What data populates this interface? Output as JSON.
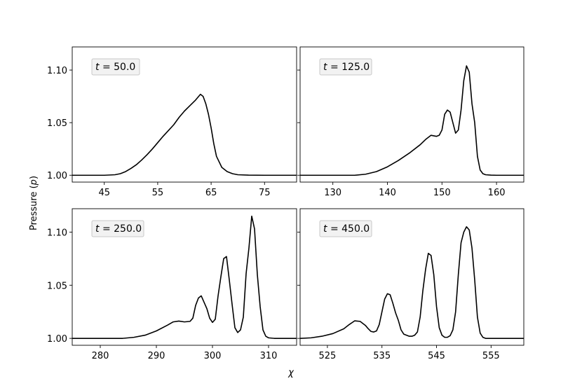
{
  "figure": {
    "ylabel": "Pressure (p)",
    "xlabel": "χ"
  },
  "chart_data": [
    {
      "type": "line",
      "annotation": "t = 50.0",
      "xlim": [
        39,
        81
      ],
      "ylim": [
        0.9935,
        1.122
      ],
      "xticks": [
        45,
        55,
        65,
        75
      ],
      "yticks": [
        1.0,
        1.05,
        1.1
      ],
      "x": [
        39,
        45,
        47,
        48,
        49,
        50,
        51,
        52,
        53,
        54,
        55,
        56,
        57,
        58,
        59,
        60,
        61,
        62,
        62.5,
        63,
        63.5,
        64,
        64.5,
        65,
        65.5,
        66,
        67,
        68,
        69,
        70,
        72,
        75,
        81
      ],
      "values": [
        1.0,
        1.0,
        1.0005,
        1.0015,
        1.0035,
        1.0065,
        1.01,
        1.0145,
        1.0195,
        1.025,
        1.031,
        1.037,
        1.0425,
        1.048,
        1.055,
        1.061,
        1.066,
        1.071,
        1.074,
        1.077,
        1.075,
        1.068,
        1.058,
        1.045,
        1.03,
        1.018,
        1.0075,
        1.0035,
        1.0015,
        1.0005,
        1.0001,
        1.0,
        1.0
      ]
    },
    {
      "type": "line",
      "annotation": "t = 125.0",
      "xlim": [
        124,
        165
      ],
      "ylim": [
        0.9935,
        1.122
      ],
      "xticks": [
        130,
        140,
        150,
        160
      ],
      "yticks": [
        1.0,
        1.05,
        1.1
      ],
      "x": [
        124,
        134,
        136,
        138,
        140,
        142,
        144,
        146,
        147,
        148,
        149,
        149.5,
        150,
        150.5,
        151,
        151.5,
        152,
        152.5,
        153,
        153.5,
        154,
        154.5,
        155,
        155.5,
        156,
        156.5,
        157,
        157.5,
        158,
        159,
        160,
        165
      ],
      "values": [
        1.0,
        1.0,
        1.001,
        1.0035,
        1.008,
        1.014,
        1.021,
        1.029,
        1.034,
        1.038,
        1.037,
        1.038,
        1.043,
        1.058,
        1.062,
        1.06,
        1.05,
        1.04,
        1.043,
        1.062,
        1.09,
        1.104,
        1.098,
        1.068,
        1.05,
        1.018,
        1.005,
        1.0015,
        1.0005,
        1.0001,
        1.0,
        1.0
      ]
    },
    {
      "type": "line",
      "annotation": "t = 250.0",
      "xlim": [
        275,
        315
      ],
      "ylim": [
        0.9935,
        1.122
      ],
      "xticks": [
        280,
        290,
        300,
        310
      ],
      "yticks": [
        1.0,
        1.05,
        1.1
      ],
      "x": [
        275,
        284,
        286,
        288,
        290,
        292,
        293,
        294,
        295,
        296,
        296.5,
        297,
        297.5,
        298,
        298.5,
        299,
        299.5,
        300,
        300.5,
        301,
        301.5,
        302,
        302.5,
        303,
        303.5,
        304,
        304.5,
        305,
        305.5,
        306,
        306.5,
        307,
        307.5,
        308,
        308.5,
        309,
        309.5,
        310,
        311,
        312,
        315
      ],
      "values": [
        1.0,
        1.0,
        1.001,
        1.003,
        1.007,
        1.0125,
        1.0155,
        1.0163,
        1.0155,
        1.016,
        1.019,
        1.031,
        1.038,
        1.04,
        1.034,
        1.028,
        1.019,
        1.015,
        1.018,
        1.04,
        1.058,
        1.075,
        1.077,
        1.055,
        1.032,
        1.01,
        1.0055,
        1.008,
        1.02,
        1.061,
        1.085,
        1.115,
        1.103,
        1.06,
        1.03,
        1.008,
        1.002,
        1.0005,
        1.0,
        1.0,
        1.0
      ]
    },
    {
      "type": "line",
      "annotation": "t = 450.0",
      "xlim": [
        520,
        561
      ],
      "ylim": [
        0.9935,
        1.122
      ],
      "xticks": [
        525,
        535,
        545,
        555
      ],
      "yticks": [
        1.0,
        1.05,
        1.1
      ],
      "x": [
        520,
        522,
        524,
        526,
        528,
        529,
        530,
        531,
        532,
        532.5,
        533,
        533.5,
        534,
        534.5,
        535,
        535.5,
        536,
        536.5,
        537,
        537.5,
        538,
        538.5,
        539,
        539.5,
        540,
        540.5,
        541,
        541.5,
        542,
        542.5,
        543,
        543.5,
        544,
        544.5,
        545,
        545.5,
        546,
        546.5,
        547,
        547.5,
        548,
        548.5,
        549,
        549.5,
        550,
        550.5,
        551,
        551.5,
        552,
        552.5,
        553,
        553.5,
        554,
        554.5,
        555,
        556,
        561
      ],
      "values": [
        1.0,
        1.0005,
        1.002,
        1.0045,
        1.009,
        1.013,
        1.0165,
        1.016,
        1.012,
        1.009,
        1.0065,
        1.006,
        1.007,
        1.013,
        1.025,
        1.037,
        1.042,
        1.041,
        1.033,
        1.024,
        1.017,
        1.008,
        1.004,
        1.003,
        1.002,
        1.002,
        1.003,
        1.006,
        1.02,
        1.045,
        1.065,
        1.08,
        1.078,
        1.06,
        1.03,
        1.01,
        1.003,
        1.001,
        1.001,
        1.0025,
        1.008,
        1.025,
        1.06,
        1.09,
        1.1,
        1.105,
        1.102,
        1.085,
        1.055,
        1.02,
        1.005,
        1.001,
        1.0,
        1.0,
        1.0,
        1.0,
        1.0
      ]
    }
  ]
}
